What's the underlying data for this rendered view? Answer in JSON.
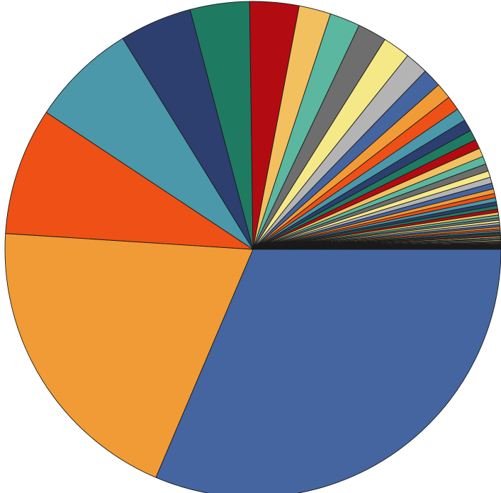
{
  "chart_data": {
    "type": "pie",
    "title": "",
    "start_angle_deg": 0,
    "direction": "clockwise",
    "legend": "none",
    "values": [
      33.3,
      20.8,
      8.8,
      7.3,
      5.0,
      4.1,
      3.4,
      2.2,
      2.1,
      2.0,
      1.9,
      1.6,
      1.3,
      1.1,
      1.0,
      0.9,
      0.8,
      0.72,
      0.64,
      0.6,
      0.55,
      0.5,
      0.45,
      0.42,
      0.4,
      0.32,
      0.3,
      0.28,
      0.26,
      0.24,
      0.22,
      0.2,
      0.18,
      0.17,
      0.16,
      0.15,
      0.14,
      0.13,
      0.12,
      0.11,
      0.1,
      0.1,
      0.09,
      0.09,
      0.08,
      0.08,
      0.07,
      0.07,
      0.06,
      0.06,
      0.05,
      0.05,
      0.05,
      0.04,
      0.04,
      0.04,
      0.03,
      0.03,
      0.03,
      0.02
    ],
    "colors": [
      "#4465a0",
      "#f19b36",
      "#ef5015",
      "#4a98a9",
      "#2c3f6e",
      "#1f7a62",
      "#b30b12",
      "#f2c05e",
      "#5bb7a0",
      "#6e6e6e",
      "#f4e887",
      "#b4b4b4"
    ]
  }
}
